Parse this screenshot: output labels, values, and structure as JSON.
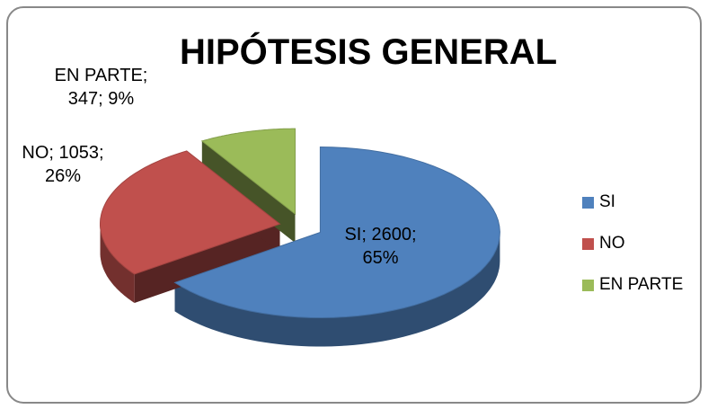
{
  "chart_data": {
    "type": "pie",
    "title": "HIPÓTESIS GENERAL",
    "categories": [
      "SI",
      "NO",
      "EN PARTE"
    ],
    "values": [
      2600,
      1053,
      347
    ],
    "value_labels": [
      "SI; 2600; 65%",
      "NO; 1053; 26%",
      "EN PARTE; 347; 9%"
    ],
    "colors": [
      "#4f81bd",
      "#c0504d",
      "#9bbb59"
    ],
    "legend": "right"
  }
}
